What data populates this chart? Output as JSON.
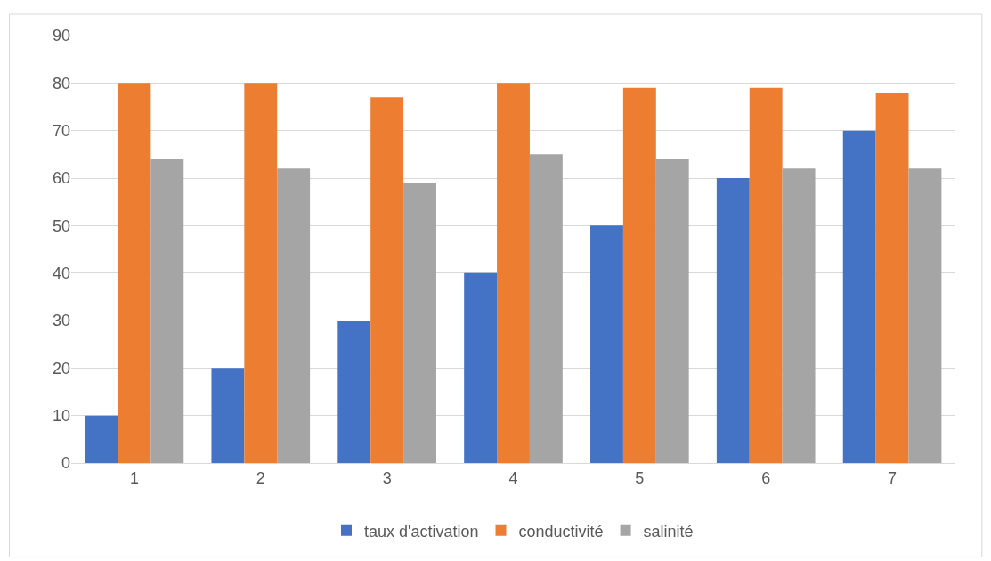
{
  "chart_data": {
    "type": "bar",
    "categories": [
      "1",
      "2",
      "3",
      "4",
      "5",
      "6",
      "7"
    ],
    "series": [
      {
        "name": "taux d'activation",
        "color": "#4472c4",
        "values": [
          10,
          20,
          30,
          40,
          50,
          60,
          70
        ]
      },
      {
        "name": "conductivité",
        "color": "#ed7d31",
        "values": [
          80,
          80,
          77,
          80,
          79,
          79,
          78
        ]
      },
      {
        "name": "salinité",
        "color": "#a5a5a5",
        "values": [
          64,
          62,
          59,
          65,
          64,
          62,
          62
        ]
      }
    ],
    "ylim": [
      0,
      90
    ],
    "yticks": [
      0,
      10,
      20,
      30,
      40,
      50,
      60,
      70,
      80,
      90
    ],
    "grid": "y",
    "legend": "bottom"
  }
}
